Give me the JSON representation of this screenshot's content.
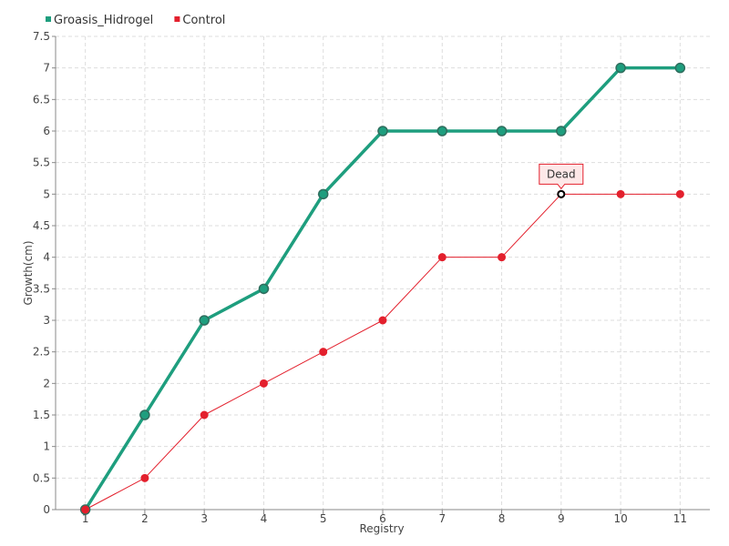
{
  "chart_data": {
    "type": "line",
    "title": "",
    "xlabel": "Registry",
    "ylabel": "Growth(cm)",
    "categories": [
      "1",
      "2",
      "3",
      "4",
      "5",
      "6",
      "7",
      "8",
      "9",
      "10",
      "11"
    ],
    "ylim": [
      0,
      7.5
    ],
    "yticks": [
      "0",
      "0.5",
      "1",
      "1.5",
      "2",
      "2.5",
      "3",
      "3.5",
      "4",
      "4.5",
      "5",
      "5.5",
      "6",
      "6.5",
      "7",
      "7.5"
    ],
    "grid": true,
    "legend_position": "top-left",
    "series": [
      {
        "name": "Groasis_Hidrogel",
        "color": "#1e9e7e",
        "values": [
          0,
          1.5,
          3,
          3.5,
          5,
          6,
          6,
          6,
          6,
          7,
          7
        ]
      },
      {
        "name": "Control",
        "color": "#e3202d",
        "values": [
          0,
          0.5,
          1.5,
          2,
          2.5,
          3,
          4,
          4,
          5,
          5,
          5
        ]
      }
    ],
    "annotations": [
      {
        "series": "Control",
        "category": "9",
        "value": 5,
        "text": "Dead"
      }
    ]
  }
}
